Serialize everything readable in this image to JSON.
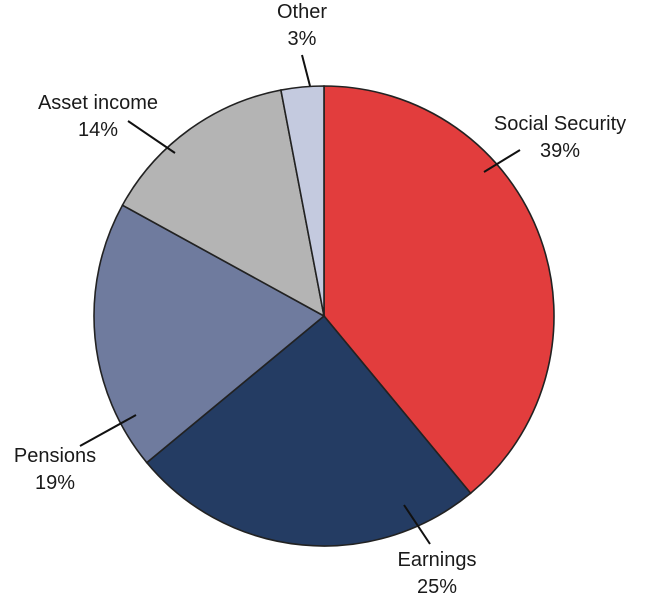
{
  "chart_data": {
    "type": "pie",
    "title": "",
    "start_angle_deg": 0,
    "direction": "clockwise",
    "slices": [
      {
        "name": "Social Security",
        "value": 39,
        "label": "39%",
        "color": "#e23d3d"
      },
      {
        "name": "Earnings",
        "value": 25,
        "label": "25%",
        "color": "#243c63"
      },
      {
        "name": "Pensions",
        "value": 19,
        "label": "19%",
        "color": "#6f7b9e"
      },
      {
        "name": "Asset income",
        "value": 14,
        "label": "14%",
        "color": "#b4b4b4"
      },
      {
        "name": "Other",
        "value": 3,
        "label": "3%",
        "color": "#c4cadf"
      }
    ]
  }
}
